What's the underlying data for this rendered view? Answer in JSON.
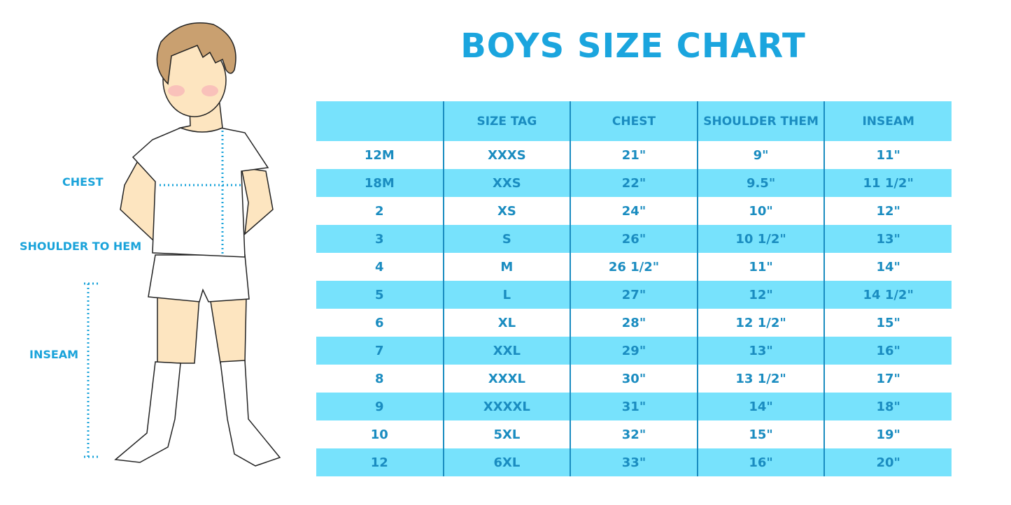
{
  "title": "BOYS SIZE CHART",
  "figure_labels": {
    "chest": "CHEST",
    "shoulder": "SHOULDER TO HEM",
    "inseam": "INSEAM"
  },
  "colors": {
    "accent": "#1ba5de",
    "row_alt": "#77e2fc",
    "text": "#1a8cc0"
  },
  "table": {
    "headers": [
      "",
      "SIZE TAG",
      "CHEST",
      "SHOULDER THEM",
      "INSEAM"
    ],
    "rows": [
      [
        "12M",
        "XXXS",
        "21\"",
        "9\"",
        "11\""
      ],
      [
        "18M",
        "XXS",
        "22\"",
        "9.5\"",
        "11 1/2\""
      ],
      [
        "2",
        "XS",
        "24\"",
        "10\"",
        "12\""
      ],
      [
        "3",
        "S",
        "26\"",
        "10 1/2\"",
        "13\""
      ],
      [
        "4",
        "M",
        "26 1/2\"",
        "11\"",
        "14\""
      ],
      [
        "5",
        "L",
        "27\"",
        "12\"",
        "14 1/2\""
      ],
      [
        "6",
        "XL",
        "28\"",
        "12 1/2\"",
        "15\""
      ],
      [
        "7",
        "XXL",
        "29\"",
        "13\"",
        "16\""
      ],
      [
        "8",
        "XXXL",
        "30\"",
        "13 1/2\"",
        "17\""
      ],
      [
        "9",
        "XXXXL",
        "31\"",
        "14\"",
        "18\""
      ],
      [
        "10",
        "5XL",
        "32\"",
        "15\"",
        "19\""
      ],
      [
        "12",
        "6XL",
        "33\"",
        "16\"",
        "20\""
      ]
    ]
  }
}
